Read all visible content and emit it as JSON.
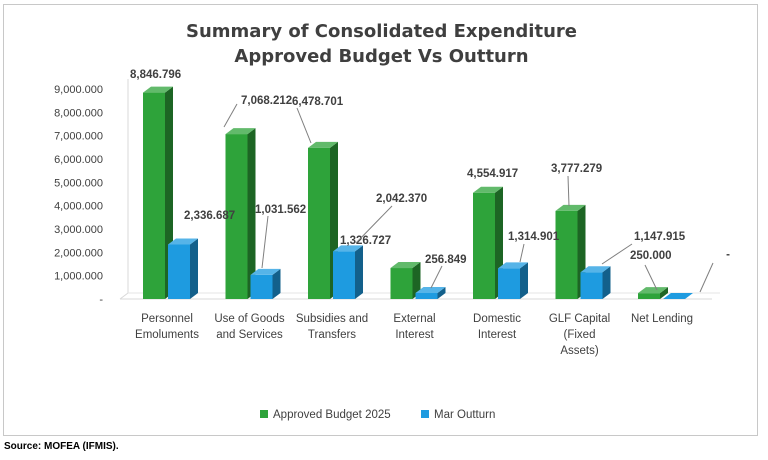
{
  "source_note": "Source: MOFEA (IFMIS).",
  "chart_data": {
    "type": "bar",
    "title": "Summary of Consolidated Expenditure",
    "subtitle": "Approved Budget Vs Outturn",
    "xlabel": "",
    "ylabel": "",
    "ylim": [
      0,
      9000000
    ],
    "y_ticks": [
      "9,000.000",
      "8,000.000",
      "7,000.000",
      "6,000.000",
      "5,000.000",
      "4,000.000",
      "3,000.000",
      "2,000.000",
      "1,000.000",
      "-"
    ],
    "categories": [
      [
        "Personnel",
        "Emoluments"
      ],
      [
        "Use of Goods",
        "and Services"
      ],
      [
        "Subsidies and",
        "Transfers"
      ],
      [
        "External",
        "Interest"
      ],
      [
        "Domestic",
        "Interest"
      ],
      [
        "GLF Capital",
        "(Fixed",
        "Assets)"
      ],
      [
        "Net Lending"
      ]
    ],
    "series": [
      {
        "name": "Approved Budget 2025",
        "color": "#2ea33a",
        "values": [
          8846796,
          7068212,
          6478701,
          1326727,
          4554917,
          3777279,
          250000
        ],
        "labels": [
          "8,846.796",
          "7,068.212",
          "6,478.701",
          "1,326.727",
          "4,554.917",
          "3,777.279",
          "250.000"
        ]
      },
      {
        "name": "Mar Outturn",
        "color": "#1e9be0",
        "values": [
          2336687,
          1031562,
          2042370,
          256849,
          1314901,
          1147915,
          0
        ],
        "labels": [
          "2,336.687",
          "1,031.562",
          "2,042.370",
          "256.849",
          "1,314.901",
          "1,147.915",
          "-"
        ]
      }
    ],
    "chart_type_style": "3d-clustered-column",
    "grid": false,
    "legend_position": "bottom"
  }
}
